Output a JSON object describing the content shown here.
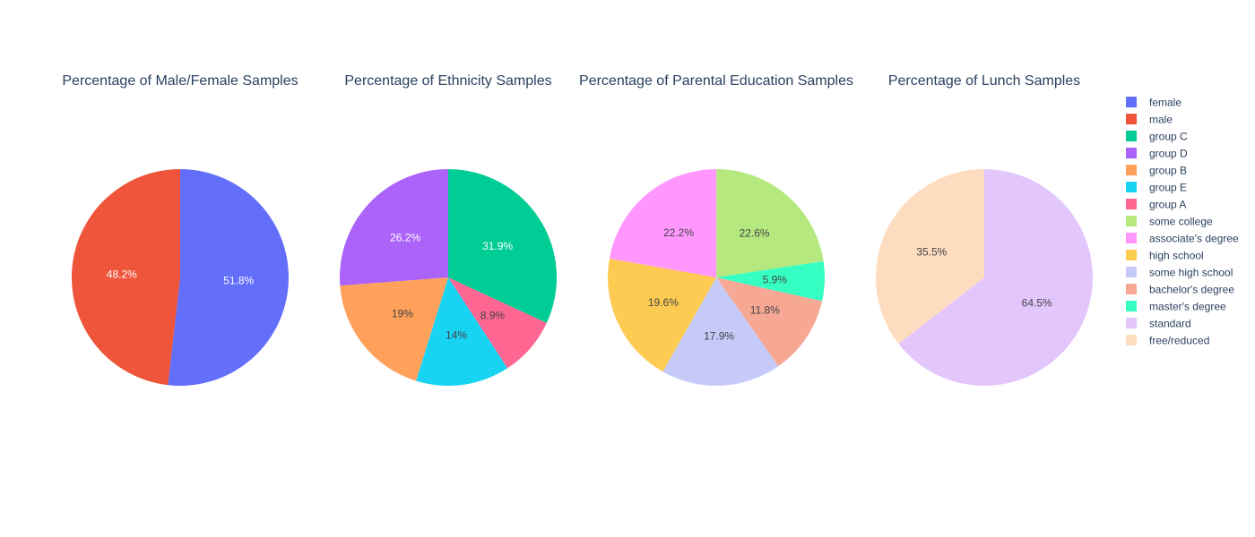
{
  "chart_data": [
    {
      "type": "pie",
      "title": "Percentage of Male/Female Samples",
      "slices": [
        {
          "label": "female",
          "value": 51.8,
          "text": "51.8%",
          "color": "#636efa"
        },
        {
          "label": "male",
          "value": 48.2,
          "text": "48.2%",
          "color": "#ef553b"
        }
      ]
    },
    {
      "type": "pie",
      "title": "Percentage of Ethnicity Samples",
      "slices": [
        {
          "label": "group C",
          "value": 31.9,
          "text": "31.9%",
          "color": "#00cc96"
        },
        {
          "label": "group A",
          "value": 8.9,
          "text": "8.9%",
          "color": "#ff6692"
        },
        {
          "label": "group E",
          "value": 14,
          "text": "14%",
          "color": "#19d3f3"
        },
        {
          "label": "group B",
          "value": 19,
          "text": "19%",
          "color": "#ffa15a"
        },
        {
          "label": "group D",
          "value": 26.2,
          "text": "26.2%",
          "color": "#ab63fa"
        }
      ]
    },
    {
      "type": "pie",
      "title": "Percentage of Parental Education Samples",
      "slices": [
        {
          "label": "some college",
          "value": 22.6,
          "text": "22.6%",
          "color": "#b6e880"
        },
        {
          "label": "master's degree",
          "value": 5.9,
          "text": "5.9%",
          "color": "#35ffc2"
        },
        {
          "label": "bachelor's degree",
          "value": 11.8,
          "text": "11.8%",
          "color": "#f6a895"
        },
        {
          "label": "some high school",
          "value": 17.9,
          "text": "17.9%",
          "color": "#c6caf9"
        },
        {
          "label": "high school",
          "value": 19.6,
          "text": "19.6%",
          "color": "#fecb52"
        },
        {
          "label": "associate's degree",
          "value": 22.2,
          "text": "22.2%",
          "color": "#ff97ff"
        }
      ]
    },
    {
      "type": "pie",
      "title": "Percentage of Lunch Samples",
      "slices": [
        {
          "label": "standard",
          "value": 64.5,
          "text": "64.5%",
          "color": "#e2c6fc"
        },
        {
          "label": "free/reduced",
          "value": 35.5,
          "text": "35.5%",
          "color": "#fedcc0"
        }
      ]
    }
  ],
  "legend": {
    "placement": "right",
    "items": [
      {
        "label": "female",
        "color": "#636efa"
      },
      {
        "label": "male",
        "color": "#ef553b"
      },
      {
        "label": "group C",
        "color": "#00cc96"
      },
      {
        "label": "group D",
        "color": "#ab63fa"
      },
      {
        "label": "group B",
        "color": "#ffa15a"
      },
      {
        "label": "group E",
        "color": "#19d3f3"
      },
      {
        "label": "group A",
        "color": "#ff6692"
      },
      {
        "label": "some college",
        "color": "#b6e880"
      },
      {
        "label": "associate's degree",
        "color": "#ff97ff"
      },
      {
        "label": "high school",
        "color": "#fecb52"
      },
      {
        "label": "some high school",
        "color": "#c6caf9"
      },
      {
        "label": "bachelor's degree",
        "color": "#f6a895"
      },
      {
        "label": "master's degree",
        "color": "#35ffc2"
      },
      {
        "label": "standard",
        "color": "#e2c6fc"
      },
      {
        "label": "free/reduced",
        "color": "#fedcc0"
      }
    ]
  }
}
